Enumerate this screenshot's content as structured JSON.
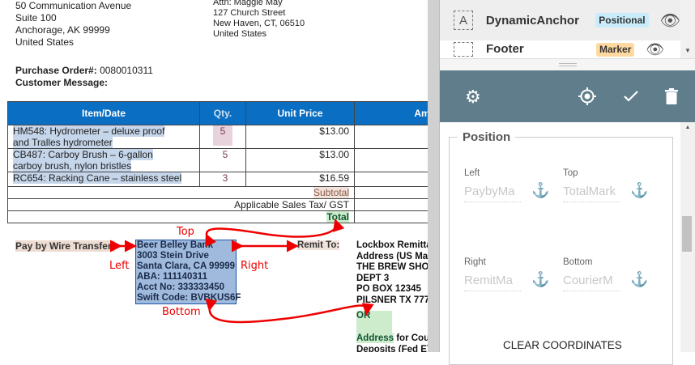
{
  "document": {
    "from_address": [
      "50 Communication Avenue",
      "Suite 100",
      "Anchorage, AK 99999",
      "United States"
    ],
    "to_address": [
      "Attn: Maggie May",
      "127 Church Street",
      "New Haven, CT, 06510",
      "United States"
    ],
    "po_label": "Purchase Order#:",
    "po_value": "0080010311",
    "customer_message_label": "Customer Message:",
    "table": {
      "headers": [
        "Item/Date",
        "Qty.",
        "Unit Price",
        "Amo"
      ],
      "rows": [
        {
          "item_line1": "HM548: Hydrometer – deluxe proof",
          "item_line2": "and Tralles hydrometer",
          "qty": "5",
          "price": "$13.00"
        },
        {
          "item_line1": "CB487: Carboy Brush – 6-gallon",
          "item_line2": "carboy brush, nylon bristles",
          "qty": "5",
          "price": "$13.00"
        },
        {
          "item_line1": "RC654: Racking Cane – stainless steel",
          "item_line2": "",
          "qty": "3",
          "price": "$16.59"
        }
      ],
      "subtotal": "Subtotal",
      "tax": "Applicable Sales Tax/ GST",
      "total": "Total"
    },
    "pay_by_wire": "Pay by Wire Transfer:",
    "bank_lines": [
      "Beer Belley Bank",
      "3003 Stein Drive",
      "Santa Clara, CA 99999",
      "ABA: 111140311",
      "Acct No: 333333450",
      "Swift Code: BVBKUS6F"
    ],
    "remit_to": "Remit To:",
    "lockbox_lines": [
      "Lockbox Remitta",
      "Address (US Mai",
      "THE BREW SHO",
      "DEPT 3",
      "PO BOX 12345",
      "PILSNER TX 777"
    ],
    "or": "OR",
    "courier_address_hl": "Address",
    "courier_address_rest": " for Cou",
    "courier_line2": "Deposits (Fed E)",
    "annotations": {
      "top": "Top",
      "left": "Left",
      "right": "Right",
      "bottom": "Bottom"
    }
  },
  "panel": {
    "items": [
      {
        "name": "DynamicAnchor",
        "badge": "Positional",
        "badge_color": "#c9ecfb",
        "icon": "text-box-icon"
      },
      {
        "name": "Footer",
        "badge": "Marker",
        "badge_color": "#ffd9a0",
        "icon": "marker-box-icon"
      }
    ],
    "toolbar": {
      "settings": "gear-icon",
      "locate": "crosshair-icon",
      "confirm": "check-icon",
      "delete": "trash-icon",
      "color": "#607d8b"
    },
    "position": {
      "title": "Position",
      "left_label": "Left",
      "left_value": "PaybyMa",
      "top_label": "Top",
      "top_value": "TotalMark",
      "right_label": "Right",
      "right_value": "RemitMa",
      "bottom_label": "Bottom",
      "bottom_value": "CourierM",
      "clear_button": "CLEAR COORDINATES"
    }
  }
}
